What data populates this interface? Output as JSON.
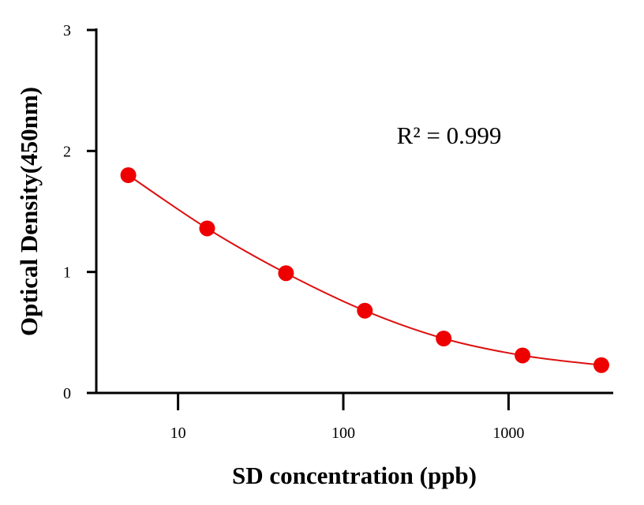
{
  "chart_data": {
    "type": "scatter",
    "title": "",
    "xlabel": "SD concentration (ppb)",
    "ylabel": "Optical Density(450nm)",
    "xscale": "log",
    "xlim": [
      3.2,
      4300
    ],
    "ylim": [
      0,
      3
    ],
    "xticks": [
      10,
      100,
      1000
    ],
    "xtick_labels": [
      "10",
      "100",
      "1000"
    ],
    "yticks": [
      0,
      1,
      2,
      3
    ],
    "ytick_labels": [
      "0",
      "1",
      "2",
      "3"
    ],
    "grid": false,
    "legend": "none",
    "annotation": "R² = 0.999",
    "series": [
      {
        "x": [
          5,
          15,
          45,
          135,
          405,
          1215,
          3645
        ],
        "y": [
          1.8,
          1.36,
          0.99,
          0.68,
          0.45,
          0.31,
          0.23
        ],
        "color": "#ee0000",
        "fit_color": "#dd1111"
      }
    ]
  }
}
